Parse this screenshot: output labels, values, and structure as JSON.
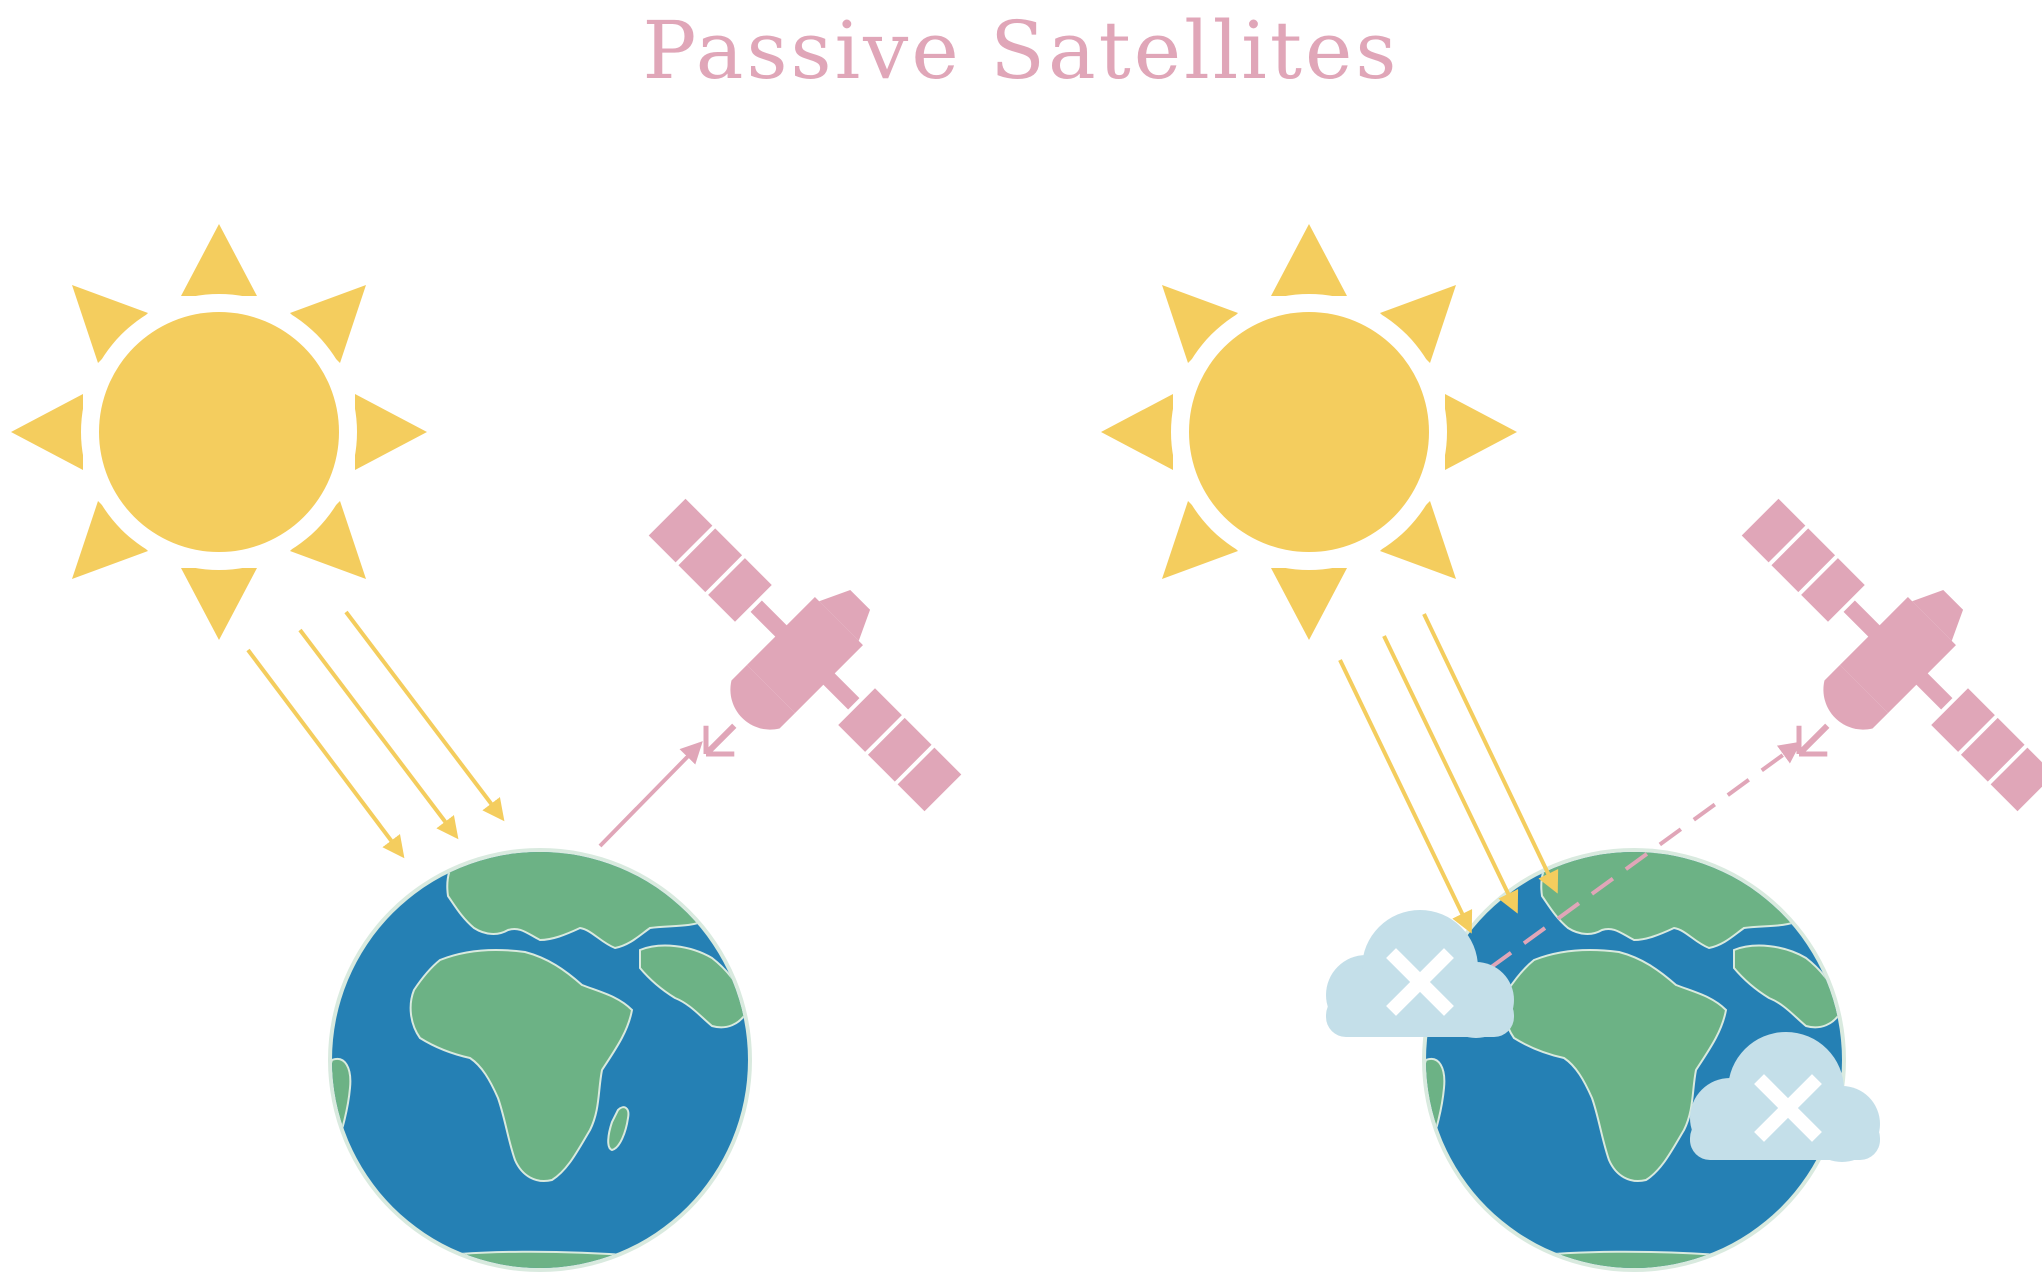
{
  "title": "Passive Satellites",
  "colors": {
    "title": "#e0a6b8",
    "sun": "#f4cd5e",
    "sun_ring": "#ffffff",
    "satellite": "#e0a6b8",
    "signal": "#e0a6b8",
    "sunlight": "#f4cd5e",
    "ocean": "#2580b4",
    "land": "#6cb285",
    "land_edge": "#d9eadf",
    "cloud": "#c4dfe9",
    "cloud_x": "#ffffff",
    "background": "#ffffff"
  },
  "icons": [
    "sun-icon",
    "satellite-icon",
    "earth-icon",
    "cloud-blocked-icon"
  ]
}
